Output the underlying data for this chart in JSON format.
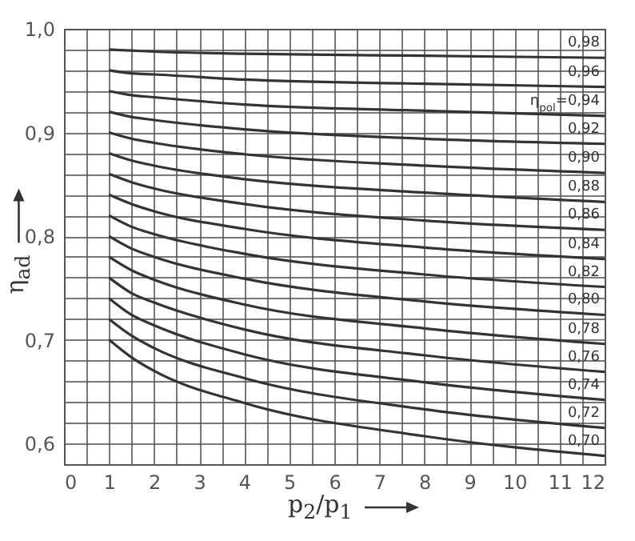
{
  "chart_data": {
    "type": "line",
    "xlabel": "p$_{2}$/p$_{1}$",
    "ylabel": "η$_{ad}$",
    "x": [
      1,
      1.5,
      2,
      4,
      8,
      12
    ],
    "series": [
      {
        "name": "0,98",
        "color": "#333333",
        "values": [
          0.98,
          0.979,
          0.978,
          0.976,
          0.974,
          0.972
        ]
      },
      {
        "name": "0,96",
        "color": "#333333",
        "values": [
          0.96,
          0.957,
          0.956,
          0.951,
          0.947,
          0.944
        ]
      },
      {
        "name": "η$_{pol}$=0,94",
        "color": "#333333",
        "values": [
          0.94,
          0.936,
          0.934,
          0.927,
          0.921,
          0.916
        ]
      },
      {
        "name": "0,92",
        "color": "#333333",
        "values": [
          0.92,
          0.915,
          0.912,
          0.903,
          0.894,
          0.889
        ]
      },
      {
        "name": "0,90",
        "color": "#333333",
        "values": [
          0.9,
          0.894,
          0.89,
          0.879,
          0.868,
          0.861
        ]
      },
      {
        "name": "0,88",
        "color": "#333333",
        "values": [
          0.88,
          0.873,
          0.868,
          0.855,
          0.842,
          0.833
        ]
      },
      {
        "name": "0,86",
        "color": "#333333",
        "values": [
          0.86,
          0.852,
          0.846,
          0.831,
          0.815,
          0.806
        ]
      },
      {
        "name": "0,84",
        "color": "#333333",
        "values": [
          0.84,
          0.831,
          0.824,
          0.807,
          0.789,
          0.778
        ]
      },
      {
        "name": "0,82",
        "color": "#333333",
        "values": [
          0.82,
          0.809,
          0.802,
          0.783,
          0.763,
          0.751
        ]
      },
      {
        "name": "0,80",
        "color": "#333333",
        "values": [
          0.8,
          0.788,
          0.78,
          0.759,
          0.737,
          0.724
        ]
      },
      {
        "name": "0,78",
        "color": "#333333",
        "values": [
          0.78,
          0.767,
          0.758,
          0.734,
          0.711,
          0.696
        ]
      },
      {
        "name": "0,76",
        "color": "#333333",
        "values": [
          0.76,
          0.745,
          0.736,
          0.71,
          0.685,
          0.669
        ]
      },
      {
        "name": "0,74",
        "color": "#333333",
        "values": [
          0.74,
          0.724,
          0.714,
          0.686,
          0.659,
          0.642
        ]
      },
      {
        "name": "0,72",
        "color": "#333333",
        "values": [
          0.72,
          0.704,
          0.692,
          0.663,
          0.633,
          0.615
        ]
      },
      {
        "name": "0,70",
        "color": "#333333",
        "values": [
          0.7,
          0.683,
          0.67,
          0.639,
          0.607,
          0.588
        ]
      }
    ],
    "xlim": [
      0,
      12
    ],
    "xticks": [
      0,
      {
        "value": 0.5,
        "label": null
      },
      1,
      {
        "value": 1.5,
        "label": null
      },
      2,
      {
        "value": 2.5,
        "label": null
      },
      3,
      {
        "value": 3.5,
        "label": null
      },
      4,
      {
        "value": 4.5,
        "label": null
      },
      5,
      {
        "value": 5.5,
        "label": null
      },
      6,
      {
        "value": 6.5,
        "label": null
      },
      7,
      {
        "value": 7.5,
        "label": null
      },
      8,
      {
        "value": 8.5,
        "label": null
      },
      9,
      {
        "value": 9.5,
        "label": null
      },
      10,
      {
        "value": 10.5,
        "label": null
      },
      11,
      {
        "value": 11.5,
        "label": null
      },
      12
    ],
    "ylim": [
      0.58,
      1.0
    ],
    "yticks": [
      {
        "value": 0.58,
        "label": null
      },
      {
        "value": 0.6,
        "label": "0,6"
      },
      {
        "value": 0.62,
        "label": null
      },
      {
        "value": 0.64,
        "label": null
      },
      {
        "value": 0.66,
        "label": null
      },
      {
        "value": 0.68,
        "label": null
      },
      {
        "value": 0.7,
        "label": "0,7"
      },
      {
        "value": 0.72,
        "label": null
      },
      {
        "value": 0.74,
        "label": null
      },
      {
        "value": 0.76,
        "label": null
      },
      {
        "value": 0.78,
        "label": null
      },
      {
        "value": 0.8,
        "label": "0,8"
      },
      {
        "value": 0.82,
        "label": null
      },
      {
        "value": 0.84,
        "label": null
      },
      {
        "value": 0.86,
        "label": null
      },
      {
        "value": 0.88,
        "label": null
      },
      {
        "value": 0.9,
        "label": "0,9"
      },
      {
        "value": 0.92,
        "label": null
      },
      {
        "value": 0.94,
        "label": null
      },
      {
        "value": 0.96,
        "label": null
      },
      {
        "value": 0.98,
        "label": null
      },
      {
        "value": 1.0,
        "label": "1,0"
      }
    ],
    "grid": true,
    "legend": false
  }
}
